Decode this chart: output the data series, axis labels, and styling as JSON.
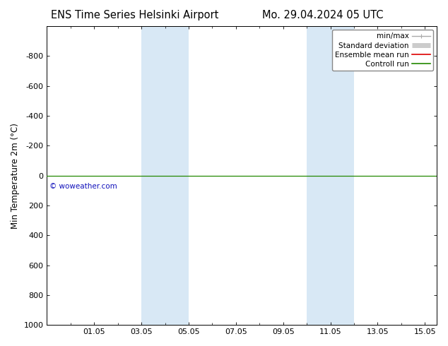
{
  "title_left": "ENS Time Series Helsinki Airport",
  "title_right": "Mo. 29.04.2024 05 UTC",
  "ylabel": "Min Temperature 2m (°C)",
  "xlim": [
    0.0,
    16.5
  ],
  "ylim": [
    1000,
    -1000
  ],
  "yticks": [
    -800,
    -600,
    -400,
    -200,
    0,
    200,
    400,
    600,
    800,
    1000
  ],
  "xtick_labels": [
    "01.05",
    "03.05",
    "05.05",
    "07.05",
    "09.05",
    "11.05",
    "13.05",
    "15.05"
  ],
  "xtick_positions": [
    2,
    4,
    6,
    8,
    10,
    12,
    14,
    16
  ],
  "minor_xtick_positions": [
    1,
    3,
    5,
    7,
    9,
    11,
    13,
    15
  ],
  "shaded_bands": [
    {
      "xmin": 4.0,
      "xmax": 6.0
    },
    {
      "xmin": 11.0,
      "xmax": 13.0
    }
  ],
  "band_color": "#d8e8f5",
  "control_run_y": 0,
  "control_run_color": "#228800",
  "ensemble_mean_color": "#dd0000",
  "minmax_color": "#aaaaaa",
  "std_dev_color": "#cccccc",
  "watermark": "© woweather.com",
  "watermark_color": "#1111bb",
  "background_color": "#ffffff",
  "plot_bg_color": "#ffffff",
  "legend_labels": [
    "min/max",
    "Standard deviation",
    "Ensemble mean run",
    "Controll run"
  ],
  "legend_line_colors": [
    "#aaaaaa",
    "#cccccc",
    "#dd0000",
    "#228800"
  ],
  "title_fontsize": 10.5,
  "label_fontsize": 8.5,
  "tick_fontsize": 8,
  "legend_fontsize": 7.5
}
